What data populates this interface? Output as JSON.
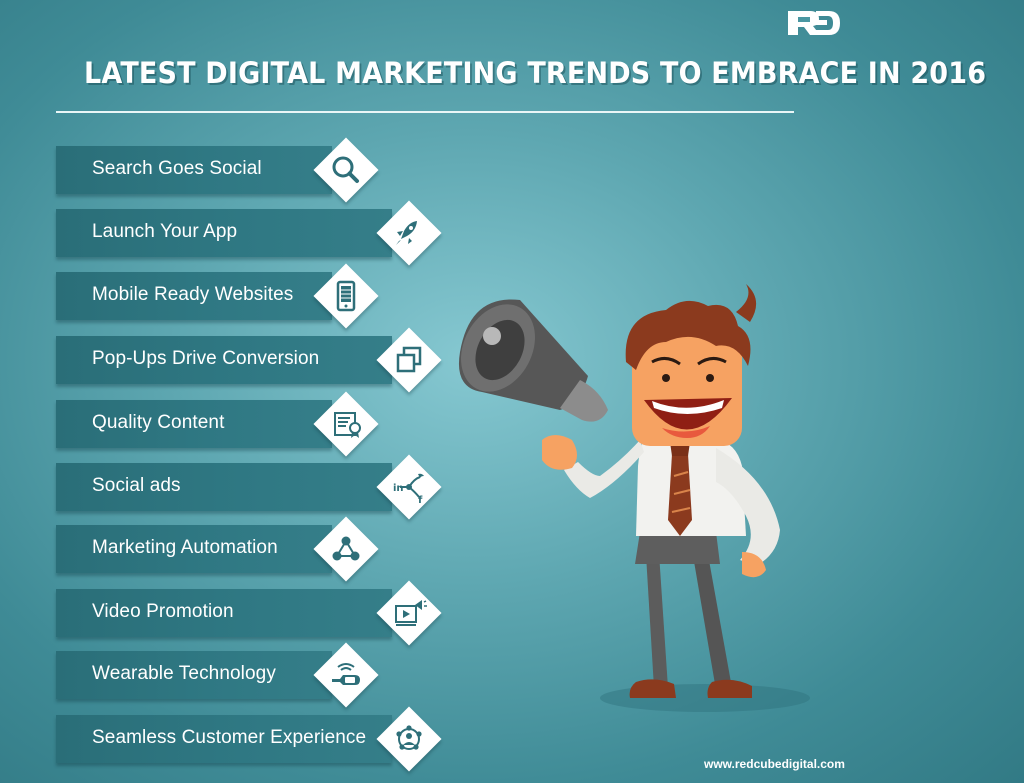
{
  "logo": {
    "text": "RED"
  },
  "title": "LATEST DIGITAL MARKETING TRENDS TO EMBRACE IN 2016",
  "trends": [
    {
      "label": "Search Goes Social",
      "icon": "search-icon"
    },
    {
      "label": "Launch Your App",
      "icon": "rocket-icon"
    },
    {
      "label": "Mobile Ready Websites",
      "icon": "smartphone-icon"
    },
    {
      "label": "Pop-Ups Drive Conversion",
      "icon": "popup-windows-icon"
    },
    {
      "label": "Quality Content",
      "icon": "certificate-icon"
    },
    {
      "label": "Social ads",
      "icon": "social-network-icon"
    },
    {
      "label": "Marketing Automation",
      "icon": "automation-network-icon"
    },
    {
      "label": "Video Promotion",
      "icon": "video-promotion-icon"
    },
    {
      "label": "Wearable Technology",
      "icon": "smartwatch-icon"
    },
    {
      "label": "Seamless Customer Experience",
      "icon": "customer-network-icon"
    }
  ],
  "website": "www.redcubedigital.com",
  "colors": {
    "background": "#5ea7b1",
    "bar": "#2f7883",
    "icon": "#2e6f79",
    "skin": "#f6a262",
    "hair": "#8b3a1e",
    "shirt": "#f2f2ef",
    "trousers": "#5c5c5c",
    "tie": "#8b3a1e"
  }
}
